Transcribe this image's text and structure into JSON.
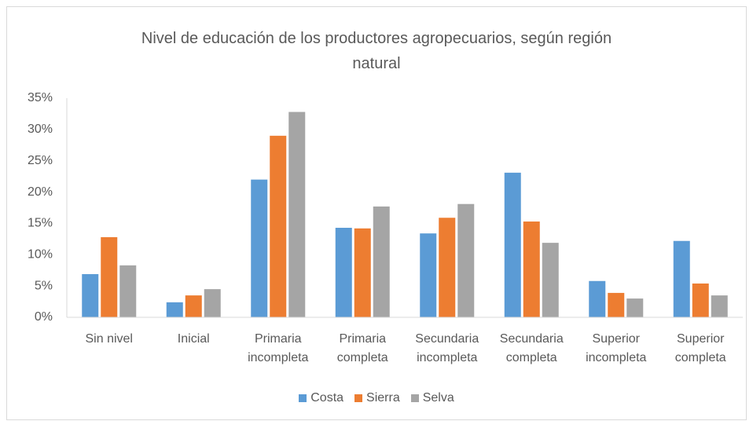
{
  "chart_data": {
    "type": "bar",
    "title": "Nivel de educación de los productores agropecuarios, según región natural",
    "categories": [
      "Sin nivel",
      "Inicial",
      "Primaria incompleta",
      "Primaria completa",
      "Secundaria incompleta",
      "Secundaria completa",
      "Superior incompleta",
      "Superior completa"
    ],
    "series": [
      {
        "name": "Costa",
        "color": "#5b9bd5",
        "values": [
          6.9,
          2.4,
          22.0,
          14.3,
          13.4,
          23.1,
          5.8,
          12.2
        ]
      },
      {
        "name": "Sierra",
        "color": "#ed7d31",
        "values": [
          12.8,
          3.5,
          29.0,
          14.2,
          15.9,
          15.3,
          3.9,
          5.4
        ]
      },
      {
        "name": "Selva",
        "color": "#a5a5a5",
        "values": [
          8.3,
          4.5,
          32.8,
          17.7,
          18.1,
          11.9,
          3.0,
          3.5
        ]
      }
    ],
    "ylim": [
      0,
      35
    ],
    "yticks": [
      {
        "value": 0,
        "label": "0%"
      },
      {
        "value": 5,
        "label": "5%"
      },
      {
        "value": 10,
        "label": "10%"
      },
      {
        "value": 15,
        "label": "15%"
      },
      {
        "value": 20,
        "label": "20%"
      },
      {
        "value": 25,
        "label": "25%"
      },
      {
        "value": 30,
        "label": "30%"
      },
      {
        "value": 35,
        "label": "35%"
      }
    ],
    "grid": false,
    "legend": "bottom"
  }
}
